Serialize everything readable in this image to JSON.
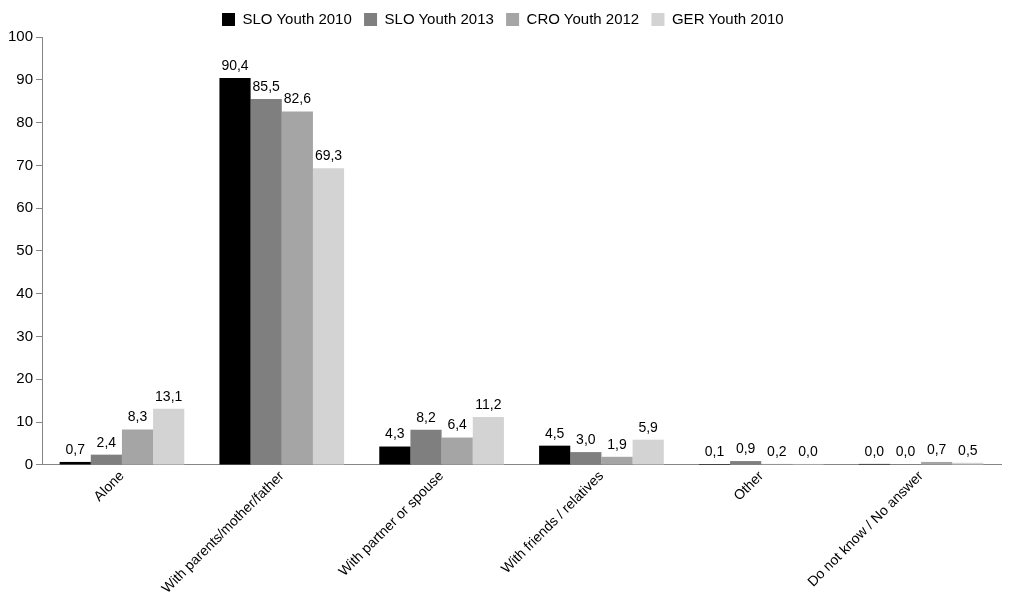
{
  "chart_data": {
    "type": "bar",
    "categories": [
      "Alone",
      "With parents/mother/father",
      "With partner or spouse",
      "With friends / relatives",
      "Other",
      "Do not know / No answer"
    ],
    "series": [
      {
        "name": "SLO Youth 2010",
        "color": "#000000",
        "values": [
          0.7,
          90.4,
          4.3,
          4.5,
          0.1,
          0.0
        ],
        "value_labels": [
          "0,7",
          "90,4",
          "4,3",
          "4,5",
          "0,1",
          "0,0"
        ]
      },
      {
        "name": "SLO Youth 2013",
        "color": "#7f7f7f",
        "values": [
          2.4,
          85.5,
          8.2,
          3.0,
          0.9,
          0.0
        ],
        "value_labels": [
          "2,4",
          "85,5",
          "8,2",
          "3,0",
          "0,9",
          "0,0"
        ]
      },
      {
        "name": "CRO Youth 2012",
        "color": "#a5a5a5",
        "values": [
          8.3,
          82.6,
          6.4,
          1.9,
          0.2,
          0.7
        ],
        "value_labels": [
          "8,3",
          "82,6",
          "6,4",
          "1,9",
          "0,2",
          "0,7"
        ]
      },
      {
        "name": "GER Youth 2010",
        "color": "#d3d3d3",
        "values": [
          13.1,
          69.3,
          11.2,
          5.9,
          0.0,
          0.5
        ],
        "value_labels": [
          "13,1",
          "69,3",
          "11,2",
          "5,9",
          "0,0",
          "0,5"
        ]
      }
    ],
    "ylim": [
      0,
      100
    ],
    "yticks": [
      0,
      10,
      20,
      30,
      40,
      50,
      60,
      70,
      80,
      90,
      100
    ],
    "grid": false,
    "legend": "top"
  }
}
